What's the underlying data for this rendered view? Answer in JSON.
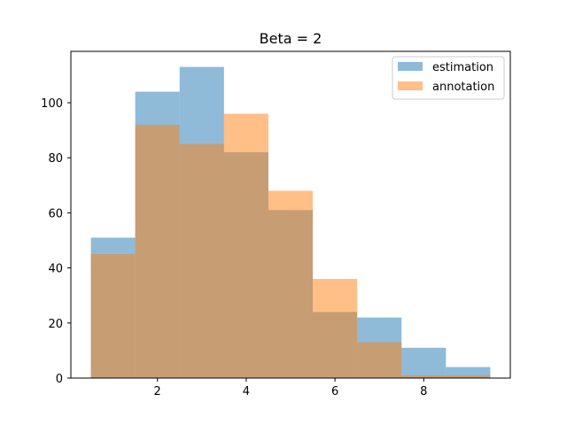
{
  "chart_data": {
    "type": "bar",
    "title": "Beta = 2",
    "xlabel": "",
    "ylabel": "",
    "bin_edges": [
      0.5,
      1.5,
      2.5,
      3.5,
      4.5,
      5.5,
      6.5,
      7.5,
      8.5,
      9.5
    ],
    "series": [
      {
        "name": "estimation",
        "values": [
          51,
          104,
          113,
          82,
          61,
          24,
          22,
          11,
          4
        ],
        "color": "#1f77b4",
        "opacity": 0.5
      },
      {
        "name": "annotation",
        "values": [
          45,
          92,
          85,
          96,
          68,
          36,
          13,
          1,
          1
        ],
        "color": "#ff7f0e",
        "opacity": 0.5
      }
    ],
    "xlim": [
      0.05,
      9.95
    ],
    "ylim": [
      0,
      118.65
    ],
    "xticks": [
      2,
      4,
      6,
      8
    ],
    "xtick_labels": [
      "2",
      "4",
      "6",
      "8"
    ],
    "yticks": [
      0,
      20,
      40,
      60,
      80,
      100
    ],
    "ytick_labels": [
      "0",
      "20",
      "40",
      "60",
      "80",
      "100"
    ],
    "legend_position": "top-right",
    "grid": false
  }
}
